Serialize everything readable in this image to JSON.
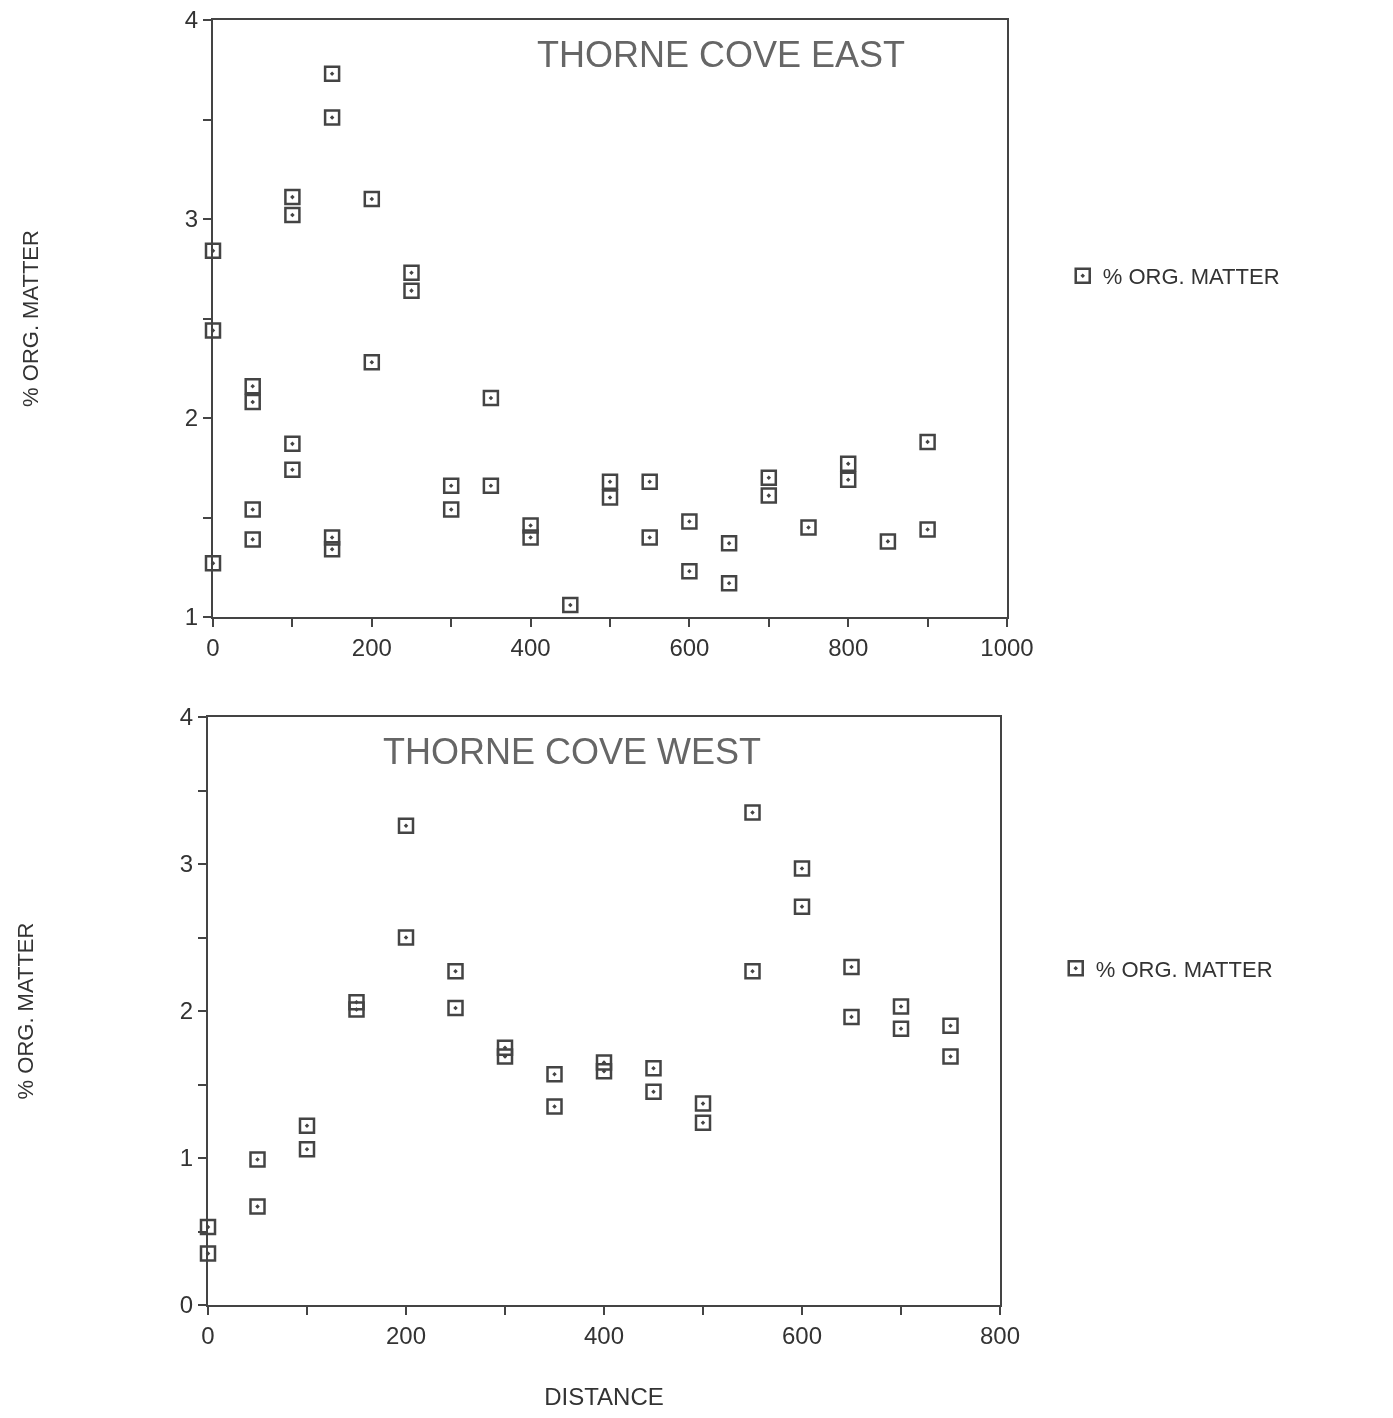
{
  "chart_data": [
    {
      "type": "scatter",
      "title": "THORNE COVE EAST",
      "ylabel": "% ORG. MATTER",
      "xlim": [
        0,
        1000
      ],
      "ylim": [
        1,
        4
      ],
      "xticks": [
        0,
        {
          "value": 100,
          "label": null
        },
        200,
        {
          "value": 300,
          "label": null
        },
        400,
        {
          "value": 500,
          "label": null
        },
        600,
        {
          "value": 700,
          "label": null
        },
        800,
        {
          "value": 900,
          "label": null
        },
        1000
      ],
      "yticks": [
        1,
        {
          "value": 1.5,
          "label": null
        },
        2,
        {
          "value": 2.5,
          "label": null
        },
        3,
        {
          "value": 3.5,
          "label": null
        },
        4
      ],
      "legend": "right",
      "marker": "square",
      "series": [
        {
          "name": "% ORG. MATTER",
          "color": "#444444",
          "x": [
            0,
            0,
            0,
            50,
            50,
            50,
            50,
            100,
            100,
            100,
            100,
            150,
            150,
            150,
            150,
            200,
            200,
            250,
            250,
            300,
            300,
            350,
            350,
            400,
            400,
            450,
            500,
            500,
            550,
            550,
            600,
            600,
            650,
            650,
            700,
            700,
            750,
            800,
            800,
            850,
            900,
            900
          ],
          "values": [
            2.84,
            2.44,
            1.27,
            2.16,
            2.08,
            1.54,
            1.39,
            3.11,
            3.02,
            1.87,
            1.74,
            3.73,
            3.51,
            1.4,
            1.34,
            3.1,
            2.28,
            2.73,
            2.64,
            1.66,
            1.54,
            2.1,
            1.66,
            1.46,
            1.4,
            1.06,
            1.68,
            1.6,
            1.68,
            1.4,
            1.48,
            1.23,
            1.37,
            1.17,
            1.7,
            1.61,
            1.45,
            1.77,
            1.69,
            1.38,
            1.88,
            1.44
          ]
        }
      ]
    },
    {
      "type": "scatter",
      "title": "THORNE COVE WEST",
      "xlabel": "DISTANCE",
      "ylabel": "% ORG. MATTER",
      "xlim": [
        0,
        800
      ],
      "ylim": [
        0,
        4
      ],
      "xticks": [
        0,
        {
          "value": 100,
          "label": null
        },
        200,
        {
          "value": 300,
          "label": null
        },
        400,
        {
          "value": 500,
          "label": null
        },
        600,
        {
          "value": 700,
          "label": null
        },
        800
      ],
      "yticks": [
        0,
        {
          "value": 0.5,
          "label": null
        },
        1,
        {
          "value": 1.5,
          "label": null
        },
        2,
        {
          "value": 2.5,
          "label": null
        },
        3,
        {
          "value": 3.5,
          "label": null
        },
        4
      ],
      "legend": "right",
      "marker": "square",
      "series": [
        {
          "name": "% ORG. MATTER",
          "color": "#444444",
          "x": [
            0,
            0,
            50,
            50,
            100,
            100,
            150,
            150,
            200,
            200,
            250,
            250,
            300,
            300,
            350,
            350,
            400,
            400,
            450,
            450,
            500,
            500,
            550,
            550,
            600,
            600,
            650,
            650,
            700,
            700,
            750,
            750
          ],
          "values": [
            0.53,
            0.35,
            0.99,
            0.67,
            1.22,
            1.06,
            2.06,
            2.01,
            3.26,
            2.5,
            2.27,
            2.02,
            1.75,
            1.69,
            1.57,
            1.35,
            1.65,
            1.59,
            1.61,
            1.45,
            1.37,
            1.24,
            3.35,
            2.27,
            2.97,
            2.71,
            2.3,
            1.96,
            2.03,
            1.88,
            1.9,
            1.69
          ]
        }
      ]
    }
  ]
}
